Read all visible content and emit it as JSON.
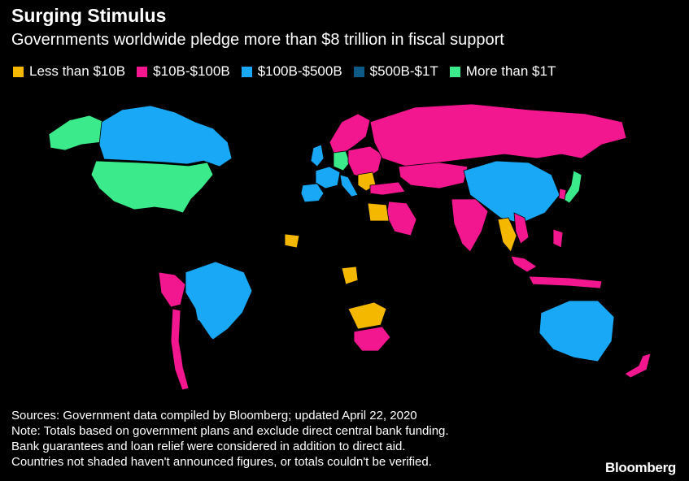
{
  "header": {
    "title": "Surging Stimulus",
    "subtitle": "Governments worldwide pledge more than $8 trillion in fiscal support"
  },
  "legend": [
    {
      "label": "Less than $10B",
      "color": "#F5B800"
    },
    {
      "label": "$10B-$100B",
      "color": "#F2168F"
    },
    {
      "label": "$100B-$500B",
      "color": "#18A8F5"
    },
    {
      "label": "$500B-$1T",
      "color": "#0D5A86"
    },
    {
      "label": "More than $1T",
      "color": "#3BEA8A"
    }
  ],
  "unshaded_color": "#000000",
  "notes": {
    "line1": "Sources: Government data compiled by Bloomberg; updated April 22, 2020",
    "line2": "Note: Totals based on government plans and exclude direct central bank funding.",
    "line3": "Bank guarantees and loan relief were considered in addition to direct aid.",
    "line4": "Countries not shaded haven't announced figures, or totals couldn't be verified."
  },
  "brand": "Bloomberg"
}
